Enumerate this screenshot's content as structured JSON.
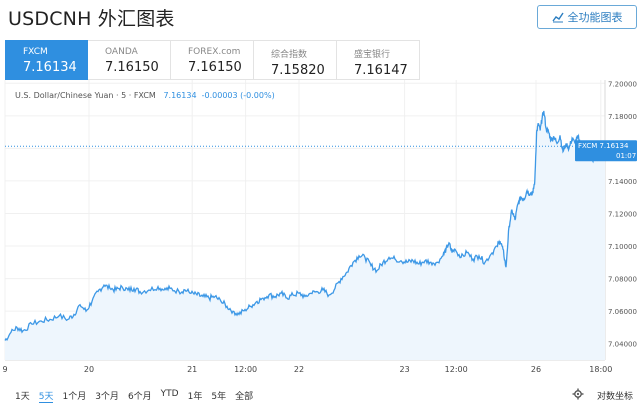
{
  "header": {
    "title": "USDCNH 外汇图表",
    "fullscreen_label": "全功能图表"
  },
  "tabs": [
    {
      "name": "FXCM",
      "value": "7.16134",
      "active": true
    },
    {
      "name": "OANDA",
      "value": "7.16150",
      "active": false
    },
    {
      "name": "FOREX.com",
      "value": "7.16150",
      "active": false
    },
    {
      "name": "综合指数",
      "value": "7.15820",
      "active": false
    },
    {
      "name": "盛宝银行",
      "value": "7.16147",
      "active": false
    }
  ],
  "legend": {
    "symbol": "U.S. Dollar/Chinese Yuan · 5 · FXCM",
    "last": "7.16134",
    "change": "-0.00003 (-0.00%)"
  },
  "periods": [
    "1天",
    "5天",
    "1个月",
    "3个月",
    "6个月",
    "YTD",
    "1年",
    "5年",
    "全部"
  ],
  "selected_period": "5天",
  "log_label": "对数坐标",
  "colors": {
    "accent": "#2f8fe0",
    "line": "#3d98e6",
    "area": "#eef6fd",
    "grid": "#f0f0f0"
  },
  "chart_data": {
    "type": "area",
    "y_ticks": [
      "7.20000",
      "7.18000",
      "7.16000",
      "7.14000",
      "7.12000",
      "7.10000",
      "7.08000",
      "7.06000",
      "7.04000"
    ],
    "ylim": [
      7.03,
      7.202
    ],
    "x_ticks": [
      {
        "label": "9",
        "pos": 0.0
      },
      {
        "label": "20",
        "pos": 0.14
      },
      {
        "label": "21",
        "pos": 0.312
      },
      {
        "label": "12:00",
        "pos": 0.401
      },
      {
        "label": "22",
        "pos": 0.49
      },
      {
        "label": "23",
        "pos": 0.666
      },
      {
        "label": "12:00",
        "pos": 0.752
      },
      {
        "label": "26",
        "pos": 0.885
      },
      {
        "label": "18:00",
        "pos": 0.993
      }
    ],
    "last_price_label": "FXCM 7.16134",
    "countdown": "01:07",
    "last_value": 7.16134,
    "series": [
      {
        "values": [
          [
            0.0,
            7.042
          ],
          [
            0.01,
            7.047
          ],
          [
            0.02,
            7.05
          ],
          [
            0.03,
            7.048
          ],
          [
            0.045,
            7.052
          ],
          [
            0.06,
            7.054
          ],
          [
            0.075,
            7.055
          ],
          [
            0.09,
            7.057
          ],
          [
            0.105,
            7.055
          ],
          [
            0.115,
            7.058
          ],
          [
            0.125,
            7.064
          ],
          [
            0.135,
            7.06
          ],
          [
            0.145,
            7.066
          ],
          [
            0.155,
            7.072
          ],
          [
            0.165,
            7.076
          ],
          [
            0.175,
            7.074
          ],
          [
            0.185,
            7.073
          ],
          [
            0.195,
            7.075
          ],
          [
            0.205,
            7.073
          ],
          [
            0.215,
            7.074
          ],
          [
            0.225,
            7.072
          ],
          [
            0.24,
            7.073
          ],
          [
            0.255,
            7.075
          ],
          [
            0.265,
            7.073
          ],
          [
            0.275,
            7.074
          ],
          [
            0.29,
            7.072
          ],
          [
            0.3,
            7.073
          ],
          [
            0.31,
            7.071
          ],
          [
            0.32,
            7.07
          ],
          [
            0.33,
            7.069
          ],
          [
            0.34,
            7.068
          ],
          [
            0.35,
            7.069
          ],
          [
            0.36,
            7.066
          ],
          [
            0.37,
            7.063
          ],
          [
            0.38,
            7.06
          ],
          [
            0.39,
            7.058
          ],
          [
            0.4,
            7.061
          ],
          [
            0.41,
            7.063
          ],
          [
            0.42,
            7.066
          ],
          [
            0.43,
            7.068
          ],
          [
            0.44,
            7.07
          ],
          [
            0.45,
            7.069
          ],
          [
            0.46,
            7.071
          ],
          [
            0.47,
            7.068
          ],
          [
            0.48,
            7.07
          ],
          [
            0.49,
            7.071
          ],
          [
            0.5,
            7.069
          ],
          [
            0.51,
            7.071
          ],
          [
            0.52,
            7.072
          ],
          [
            0.53,
            7.073
          ],
          [
            0.54,
            7.07
          ],
          [
            0.55,
            7.074
          ],
          [
            0.56,
            7.08
          ],
          [
            0.57,
            7.084
          ],
          [
            0.58,
            7.09
          ],
          [
            0.59,
            7.094
          ],
          [
            0.6,
            7.093
          ],
          [
            0.61,
            7.088
          ],
          [
            0.62,
            7.085
          ],
          [
            0.63,
            7.09
          ],
          [
            0.64,
            7.093
          ],
          [
            0.65,
            7.092
          ],
          [
            0.66,
            7.091
          ],
          [
            0.67,
            7.09
          ],
          [
            0.68,
            7.091
          ],
          [
            0.69,
            7.089
          ],
          [
            0.7,
            7.091
          ],
          [
            0.71,
            7.09
          ],
          [
            0.72,
            7.09
          ],
          [
            0.73,
            7.094
          ],
          [
            0.735,
            7.098
          ],
          [
            0.74,
            7.102
          ],
          [
            0.745,
            7.096
          ],
          [
            0.75,
            7.098
          ],
          [
            0.76,
            7.093
          ],
          [
            0.77,
            7.096
          ],
          [
            0.78,
            7.092
          ],
          [
            0.79,
            7.094
          ],
          [
            0.8,
            7.09
          ],
          [
            0.81,
            7.095
          ],
          [
            0.82,
            7.1
          ],
          [
            0.825,
            7.103
          ],
          [
            0.83,
            7.098
          ],
          [
            0.835,
            7.087
          ],
          [
            0.84,
            7.112
          ],
          [
            0.845,
            7.122
          ],
          [
            0.85,
            7.116
          ],
          [
            0.855,
            7.126
          ],
          [
            0.86,
            7.13
          ],
          [
            0.865,
            7.129
          ],
          [
            0.87,
            7.134
          ],
          [
            0.875,
            7.132
          ],
          [
            0.88,
            7.133
          ],
          [
            0.883,
            7.14
          ],
          [
            0.886,
            7.17
          ],
          [
            0.889,
            7.175
          ],
          [
            0.892,
            7.171
          ],
          [
            0.895,
            7.178
          ],
          [
            0.898,
            7.183
          ],
          [
            0.902,
            7.172
          ],
          [
            0.906,
            7.17
          ],
          [
            0.91,
            7.165
          ],
          [
            0.915,
            7.167
          ],
          [
            0.92,
            7.163
          ],
          [
            0.925,
            7.168
          ],
          [
            0.93,
            7.158
          ],
          [
            0.935,
            7.163
          ],
          [
            0.94,
            7.16
          ],
          [
            0.945,
            7.166
          ],
          [
            0.95,
            7.163
          ],
          [
            0.955,
            7.167
          ],
          [
            0.96,
            7.162
          ],
          [
            0.965,
            7.158
          ],
          [
            0.97,
            7.16
          ],
          [
            0.975,
            7.155
          ],
          [
            0.98,
            7.152
          ],
          [
            0.985,
            7.155
          ],
          [
            0.99,
            7.154
          ],
          [
            0.995,
            7.159
          ],
          [
            1.0,
            7.161
          ]
        ]
      }
    ]
  }
}
